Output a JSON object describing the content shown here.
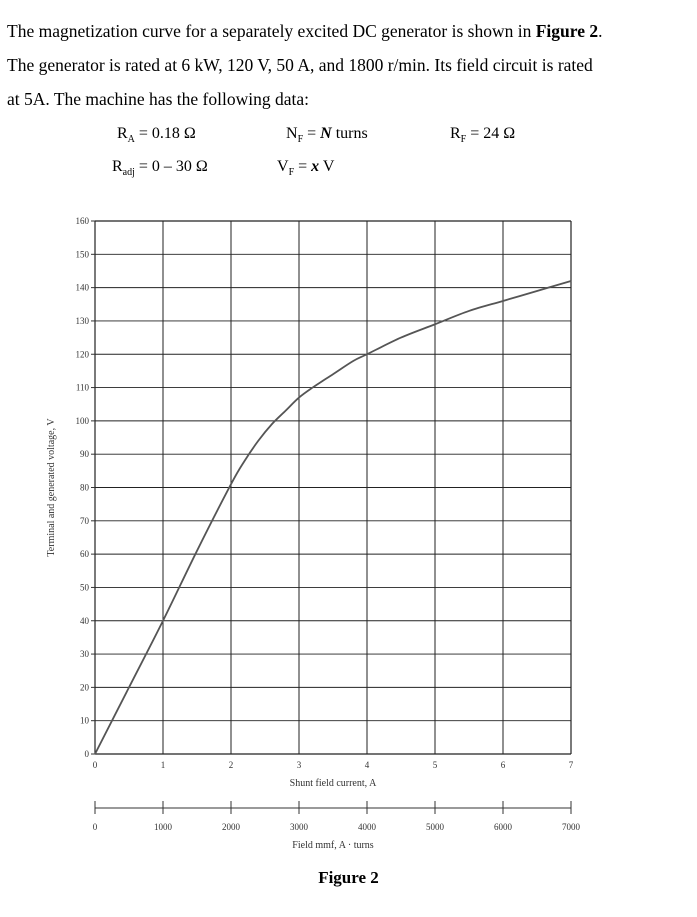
{
  "problem": {
    "line1_pre": "The magnetization curve for a separately excited DC generator is shown in ",
    "line1_bold": "Figure 2",
    "line1_post": ".",
    "line2": "The generator is rated at 6 kW, 120 V, 50 A, and 1800 r/min. Its field circuit is rated",
    "line3": "at 5A. The machine has the following data:",
    "ra_sym": "R",
    "ra_sub": "A",
    "ra_val": " = 0.18 Ω",
    "nf_sym": "N",
    "nf_sub": "F",
    "nf_eq": " = ",
    "nf_var": "N",
    "nf_unit": " turns",
    "rf_sym": "R",
    "rf_sub": "F",
    "rf_val": " = 24 Ω",
    "radj_sym": "R",
    "radj_sub": "adj",
    "radj_val": " = 0 – 30 Ω",
    "vf_sym": "V",
    "vf_sub": "F",
    "vf_eq": " = ",
    "vf_var": "x",
    "vf_unit": " V"
  },
  "caption": "Figure 2",
  "chart_data": {
    "type": "line",
    "xlabel": "Shunt field current, A",
    "ylabel": "Terminal and generated voltage, V",
    "xlim": [
      0,
      7
    ],
    "ylim": [
      0,
      160
    ],
    "x_ticks": [
      "0",
      "1",
      "2",
      "3",
      "4",
      "5",
      "6",
      "7"
    ],
    "y_ticks": [
      "0",
      "10",
      "20",
      "30",
      "40",
      "50",
      "60",
      "70",
      "80",
      "90",
      "100",
      "110",
      "120",
      "130",
      "140",
      "150",
      "160"
    ],
    "secondary_x_axis": {
      "label": "Field mmf, A · turns",
      "lim": [
        0,
        7000
      ],
      "ticks": [
        "0",
        "1000",
        "2000",
        "3000",
        "4000",
        "5000",
        "6000",
        "7000"
      ]
    },
    "grid": true,
    "series": [
      {
        "x": [
          0,
          0.5,
          1.0,
          1.5,
          2.0,
          2.2,
          2.4,
          2.6,
          2.8,
          3.0,
          3.2,
          3.5,
          3.8,
          4.0,
          4.5,
          5.0,
          5.5,
          6.0,
          6.5,
          7.0
        ],
        "y": [
          0,
          20,
          40,
          61,
          81,
          88,
          94,
          99,
          103,
          107,
          110,
          114,
          118,
          120,
          125,
          129,
          133,
          136,
          139,
          142
        ]
      }
    ],
    "colors": {
      "curve": "#555555",
      "grid": "#222222",
      "frame": "#333333",
      "text": "#333333"
    }
  }
}
